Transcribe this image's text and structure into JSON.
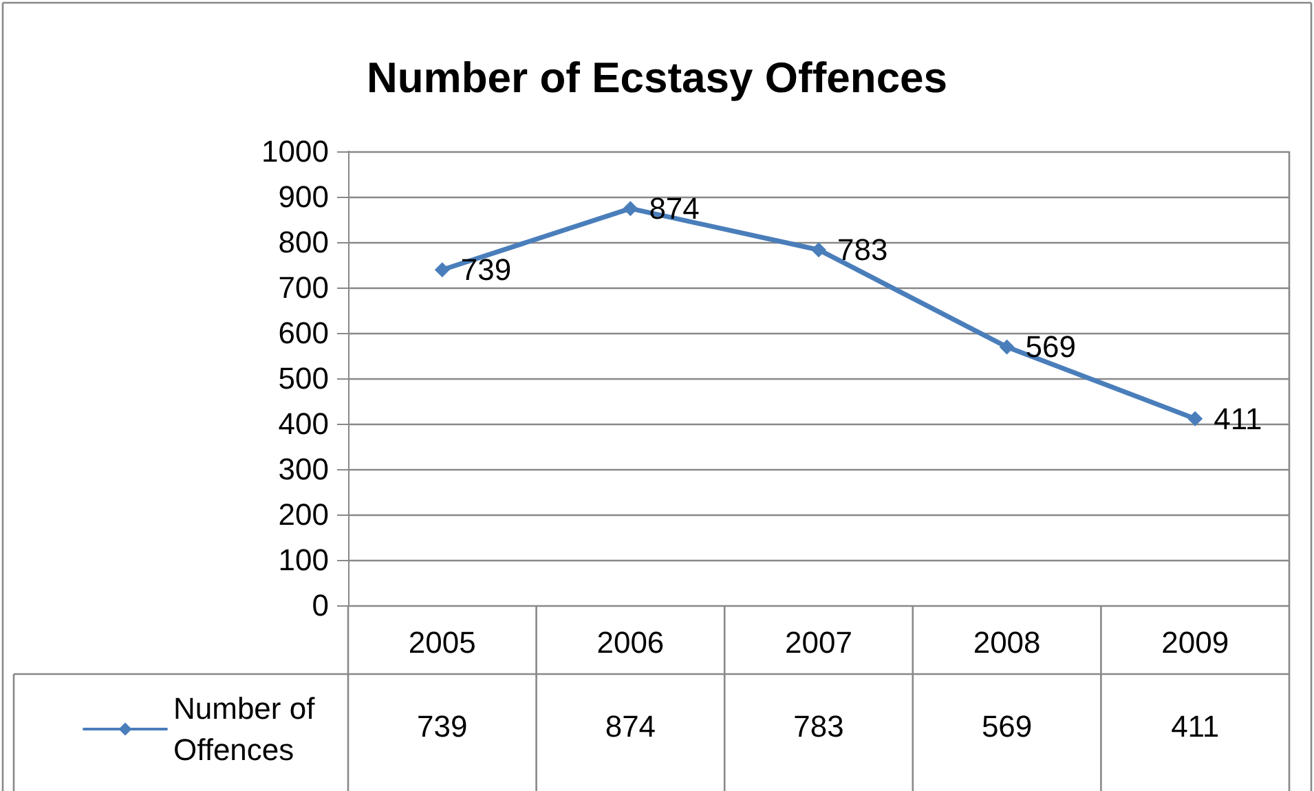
{
  "chart_data": {
    "type": "line",
    "title": "Number of Ecstasy Offences",
    "categories": [
      "2005",
      "2006",
      "2007",
      "2008",
      "2009"
    ],
    "series": [
      {
        "name": "Number of Offences",
        "color": "#4a7ebb",
        "values": [
          739,
          874,
          783,
          569,
          411
        ],
        "value_labels": [
          "739",
          "874",
          "783",
          "569",
          "411"
        ]
      }
    ],
    "ylim": [
      0,
      1000
    ],
    "yticks": [
      0,
      100,
      200,
      300,
      400,
      500,
      600,
      700,
      800,
      900,
      1000
    ],
    "grid": "y",
    "legend": "bottom left",
    "marker": "diamond",
    "line_style": "solid",
    "data_labels": true
  }
}
